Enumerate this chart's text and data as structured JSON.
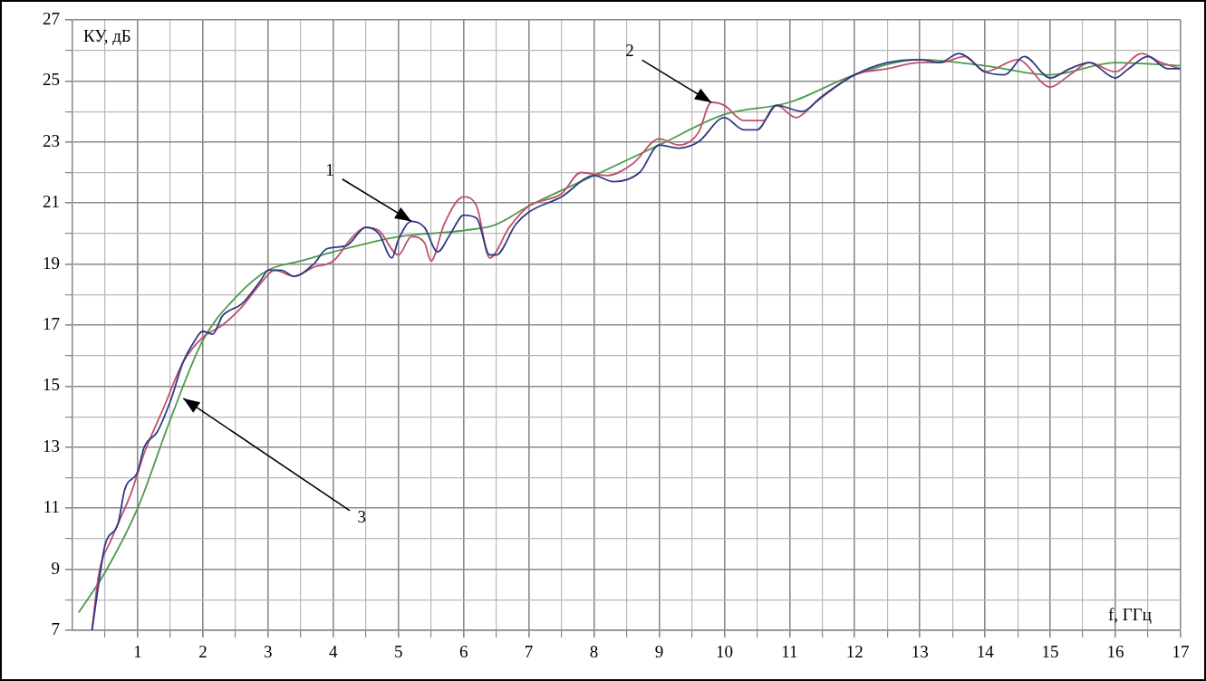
{
  "chart_data": {
    "type": "line",
    "xlabel": "f, ГГц",
    "ylabel": "КУ, дБ",
    "xlim": [
      0,
      17
    ],
    "ylim": [
      7,
      27
    ],
    "xticks": [
      {
        "value": 0.5,
        "label": null
      },
      1,
      {
        "value": 1.5,
        "label": null
      },
      2,
      {
        "value": 2.5,
        "label": null
      },
      3,
      {
        "value": 3.5,
        "label": null
      },
      4,
      {
        "value": 4.5,
        "label": null
      },
      5,
      {
        "value": 5.5,
        "label": null
      },
      6,
      {
        "value": 6.5,
        "label": null
      },
      7,
      {
        "value": 7.5,
        "label": null
      },
      8,
      {
        "value": 8.5,
        "label": null
      },
      9,
      {
        "value": 9.5,
        "label": null
      },
      10,
      {
        "value": 10.5,
        "label": null
      },
      11,
      {
        "value": 11.5,
        "label": null
      },
      12,
      {
        "value": 12.5,
        "label": null
      },
      13,
      {
        "value": 13.5,
        "label": null
      },
      14,
      {
        "value": 14.5,
        "label": null
      },
      15,
      {
        "value": 15.5,
        "label": null
      },
      16,
      {
        "value": 16.5,
        "label": null
      },
      17
    ],
    "yticks": [
      7,
      {
        "value": 8,
        "label": null
      },
      9,
      {
        "value": 10,
        "label": null
      },
      11,
      {
        "value": 12,
        "label": null
      },
      13,
      {
        "value": 14,
        "label": null
      },
      15,
      {
        "value": 16,
        "label": null
      },
      17,
      {
        "value": 18,
        "label": null
      },
      19,
      {
        "value": 20,
        "label": null
      },
      21,
      {
        "value": 22,
        "label": null
      },
      23,
      {
        "value": 24,
        "label": null
      },
      25,
      {
        "value": 26,
        "label": null
      },
      27
    ],
    "grid": true,
    "legend": false,
    "marker": "none",
    "line_style": "solid",
    "series": [
      {
        "color": "#2e3a87",
        "x": [
          0.3,
          0.4,
          0.5,
          0.7,
          0.8,
          1.0,
          1.1,
          1.3,
          1.5,
          1.7,
          1.85,
          2.0,
          2.15,
          2.3,
          2.6,
          2.9,
          3.0,
          3.2,
          3.4,
          3.7,
          3.9,
          4.2,
          4.5,
          4.7,
          4.9,
          5.0,
          5.2,
          5.4,
          5.6,
          5.8,
          6.0,
          6.2,
          6.4,
          6.5,
          6.8,
          7.0,
          7.5,
          8.0,
          8.3,
          8.7,
          9.0,
          9.3,
          9.6,
          10.0,
          10.3,
          10.5,
          10.8,
          11.2,
          11.5,
          12.0,
          12.5,
          13.0,
          13.3,
          13.6,
          14.0,
          14.3,
          14.6,
          15.0,
          15.3,
          15.6,
          16.0,
          16.2,
          16.5,
          16.8,
          17.0
        ],
        "values": [
          7.0,
          8.5,
          9.8,
          10.5,
          11.6,
          12.2,
          13.0,
          13.5,
          14.5,
          15.8,
          16.4,
          16.8,
          16.7,
          17.3,
          17.7,
          18.5,
          18.8,
          18.8,
          18.6,
          19.0,
          19.5,
          19.6,
          20.2,
          20.0,
          19.2,
          19.8,
          20.4,
          20.2,
          19.4,
          20.0,
          20.6,
          20.5,
          19.3,
          19.3,
          20.3,
          20.7,
          21.2,
          21.9,
          21.7,
          22.0,
          22.9,
          22.8,
          23.0,
          23.8,
          23.4,
          23.4,
          24.2,
          24.0,
          24.5,
          25.2,
          25.6,
          25.7,
          25.6,
          25.9,
          25.3,
          25.2,
          25.8,
          25.1,
          25.4,
          25.6,
          25.1,
          25.4,
          25.8,
          25.4,
          25.4
        ]
      },
      {
        "color": "#c0506a",
        "x": [
          0.3,
          0.4,
          0.6,
          0.9,
          1.1,
          1.4,
          1.7,
          2.0,
          2.3,
          2.6,
          2.9,
          3.1,
          3.4,
          3.7,
          4.0,
          4.3,
          4.5,
          4.7,
          5.0,
          5.2,
          5.4,
          5.5,
          5.7,
          6.0,
          6.2,
          6.4,
          6.7,
          7.0,
          7.5,
          7.8,
          8.2,
          8.6,
          9.0,
          9.3,
          9.6,
          9.8,
          10.0,
          10.3,
          10.6,
          10.8,
          11.1,
          11.4,
          12.0,
          12.5,
          13.0,
          13.3,
          13.7,
          14.0,
          14.5,
          15.0,
          15.3,
          15.6,
          16.0,
          16.4,
          16.7,
          17.0
        ],
        "values": [
          7.0,
          8.8,
          10.0,
          11.5,
          12.8,
          14.3,
          15.8,
          16.6,
          17.0,
          17.6,
          18.4,
          18.8,
          18.6,
          18.9,
          19.1,
          19.9,
          20.2,
          20.1,
          19.3,
          19.9,
          19.7,
          19.1,
          20.3,
          21.2,
          20.9,
          19.2,
          20.2,
          20.9,
          21.3,
          22.0,
          21.9,
          22.3,
          23.1,
          22.9,
          23.3,
          24.3,
          24.2,
          23.7,
          23.7,
          24.2,
          23.8,
          24.3,
          25.2,
          25.4,
          25.6,
          25.6,
          25.8,
          25.3,
          25.7,
          24.8,
          25.2,
          25.6,
          25.3,
          25.9,
          25.6,
          25.4
        ]
      },
      {
        "color": "#4c9a4c",
        "x": [
          0.1,
          0.5,
          1.0,
          1.5,
          2.0,
          2.5,
          3.0,
          3.5,
          4.0,
          5.0,
          6.0,
          6.5,
          7.0,
          8.0,
          9.0,
          10.0,
          11.0,
          12.0,
          13.0,
          14.0,
          15.0,
          16.0,
          17.0
        ],
        "values": [
          7.6,
          8.9,
          11.0,
          13.9,
          16.5,
          17.9,
          18.8,
          19.1,
          19.4,
          19.9,
          20.1,
          20.3,
          20.9,
          21.9,
          22.9,
          23.9,
          24.3,
          25.2,
          25.7,
          25.5,
          25.2,
          25.6,
          25.5
        ]
      }
    ],
    "annotations": [
      {
        "text": "1",
        "x": 5.2,
        "y": 20.4
      },
      {
        "text": "2",
        "x": 9.8,
        "y": 24.3
      },
      {
        "text": "3",
        "x": 1.7,
        "y": 14.6
      }
    ]
  }
}
